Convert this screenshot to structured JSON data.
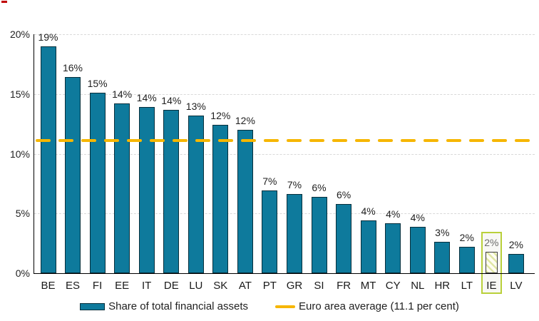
{
  "chart_data": {
    "type": "bar",
    "title": "",
    "categories": [
      "BE",
      "ES",
      "FI",
      "EE",
      "IT",
      "DE",
      "LU",
      "SK",
      "AT",
      "PT",
      "GR",
      "SI",
      "FR",
      "MT",
      "CY",
      "NL",
      "HR",
      "LT",
      "IE",
      "LV"
    ],
    "values": [
      19.0,
      16.4,
      15.1,
      14.2,
      13.9,
      13.7,
      13.2,
      12.4,
      12.0,
      6.9,
      6.6,
      6.4,
      5.8,
      4.4,
      4.2,
      3.9,
      2.6,
      2.2,
      1.8,
      1.6
    ],
    "bar_labels": [
      "19%",
      "16%",
      "15%",
      "14%",
      "14%",
      "14%",
      "13%",
      "12%",
      "12%",
      "7%",
      "7%",
      "6%",
      "6%",
      "4%",
      "4%",
      "4%",
      "3%",
      "2%",
      "2%",
      "2%"
    ],
    "series_name": "Share of total financial assets",
    "highlight_category": "IE",
    "average_line": {
      "value": 11.1,
      "label": "Euro area average (11.1 per cent)",
      "style": "dashed"
    },
    "xlabel": "",
    "ylabel": "",
    "ylim": [
      0,
      20
    ],
    "yticks": [
      "0%",
      "5%",
      "10%",
      "15%",
      "20%"
    ],
    "ytick_values": [
      0,
      5,
      10,
      15,
      20
    ],
    "grid": "horizontal-dashed",
    "legend_position": "bottom"
  },
  "colors": {
    "bar_fill": "#0e7a9c",
    "bar_border": "#072f3c",
    "highlight_bar_bg": "#fffdf2",
    "highlight_hatch": "#e0e7a6",
    "highlight_box_border": "#b9d03a",
    "average_line": "#f6b600",
    "gridline": "#d9d9d9",
    "axis": "#000000",
    "label_text": "#1f1f1f",
    "muted_label_text": "#6d6d6d",
    "red_mark": "#c00000"
  },
  "legend": {
    "bar_label": "Share of total financial assets",
    "line_label": "Euro area average (11.1 per cent)"
  }
}
